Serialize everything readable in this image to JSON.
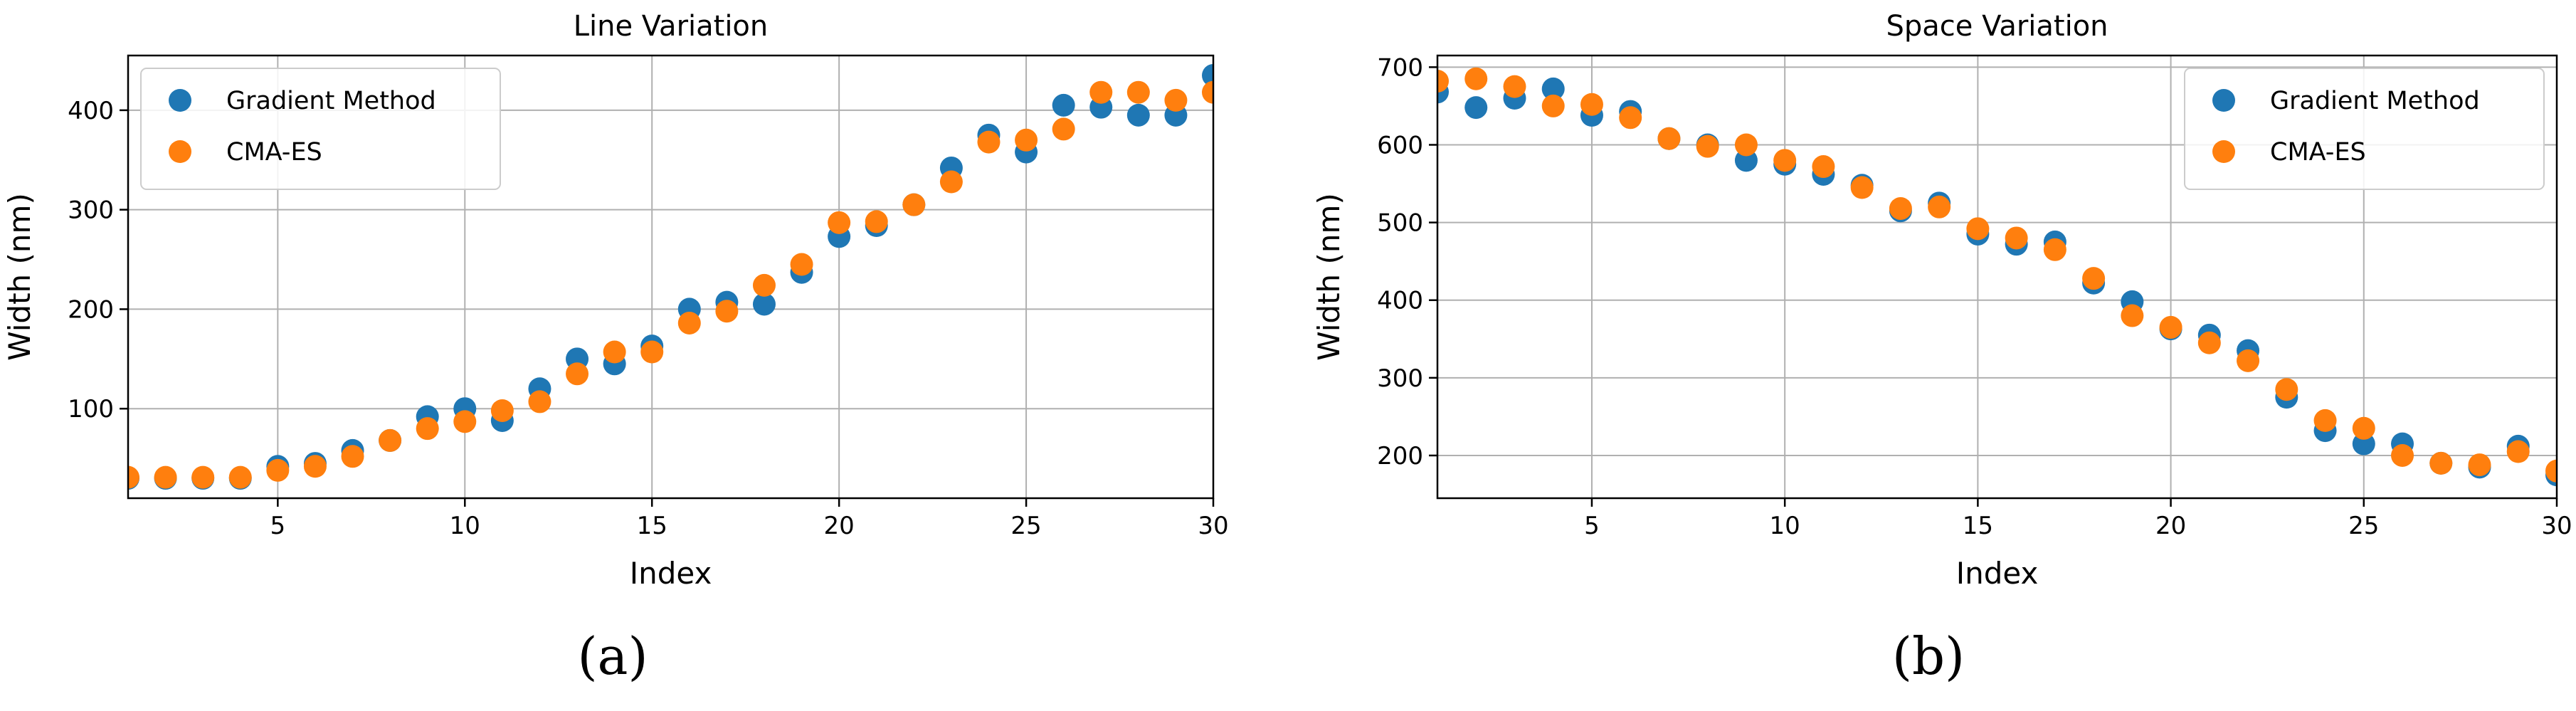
{
  "chart_data": [
    {
      "type": "scatter",
      "title": "Line Variation",
      "xlabel": "Index",
      "ylabel": "Width (nm)",
      "xlim": [
        1,
        30
      ],
      "ylim": [
        10,
        455
      ],
      "xticks": [
        5,
        10,
        15,
        20,
        25,
        30
      ],
      "yticks": [
        100,
        200,
        300,
        400
      ],
      "grid": true,
      "legend": "top-left",
      "caption": "(a)",
      "series": [
        {
          "name": "Gradient Method",
          "color": "#1f77b4",
          "x": [
            1,
            2,
            3,
            4,
            5,
            6,
            7,
            8,
            9,
            10,
            11,
            12,
            13,
            14,
            15,
            16,
            17,
            18,
            19,
            20,
            21,
            22,
            23,
            24,
            25,
            26,
            27,
            28,
            29,
            30
          ],
          "y": [
            30,
            30,
            30,
            30,
            42,
            45,
            58,
            68,
            92,
            100,
            88,
            120,
            150,
            145,
            163,
            200,
            207,
            205,
            237,
            273,
            284,
            305,
            342,
            375,
            358,
            405,
            403,
            395,
            395,
            435
          ]
        },
        {
          "name": "CMA-ES",
          "color": "#ff7f0e",
          "x": [
            1,
            2,
            3,
            4,
            5,
            6,
            7,
            8,
            9,
            10,
            11,
            12,
            13,
            14,
            15,
            16,
            17,
            18,
            19,
            20,
            21,
            22,
            23,
            24,
            25,
            26,
            27,
            28,
            29,
            30
          ],
          "y": [
            31,
            31,
            31,
            31,
            38,
            42,
            52,
            68,
            80,
            87,
            98,
            107,
            135,
            157,
            157,
            186,
            198,
            224,
            245,
            287,
            288,
            305,
            328,
            368,
            370,
            381,
            418,
            418,
            410,
            418
          ]
        }
      ]
    },
    {
      "type": "scatter",
      "title": "Space Variation",
      "xlabel": "Index",
      "ylabel": "Width (nm)",
      "xlim": [
        1,
        30
      ],
      "ylim": [
        145,
        715
      ],
      "xticks": [
        5,
        10,
        15,
        20,
        25,
        30
      ],
      "yticks": [
        200,
        300,
        400,
        500,
        600,
        700
      ],
      "grid": true,
      "legend": "top-right",
      "caption": "(b)",
      "series": [
        {
          "name": "Gradient Method",
          "color": "#1f77b4",
          "x": [
            1,
            2,
            3,
            4,
            5,
            6,
            7,
            8,
            9,
            10,
            11,
            12,
            13,
            14,
            15,
            16,
            17,
            18,
            19,
            20,
            21,
            22,
            23,
            24,
            25,
            26,
            27,
            28,
            29,
            30
          ],
          "y": [
            668,
            648,
            660,
            672,
            638,
            643,
            608,
            600,
            580,
            575,
            562,
            548,
            515,
            525,
            485,
            472,
            475,
            422,
            398,
            363,
            355,
            335,
            275,
            232,
            215,
            215,
            190,
            185,
            212,
            175
          ]
        },
        {
          "name": "CMA-ES",
          "color": "#ff7f0e",
          "x": [
            1,
            2,
            3,
            4,
            5,
            6,
            7,
            8,
            9,
            10,
            11,
            12,
            13,
            14,
            15,
            16,
            17,
            18,
            19,
            20,
            21,
            22,
            23,
            24,
            25,
            26,
            27,
            28,
            29,
            30
          ],
          "y": [
            682,
            685,
            675,
            650,
            652,
            635,
            608,
            598,
            600,
            580,
            572,
            545,
            518,
            520,
            492,
            480,
            465,
            428,
            380,
            365,
            345,
            322,
            285,
            245,
            235,
            200,
            190,
            188,
            205,
            180
          ]
        }
      ]
    }
  ]
}
